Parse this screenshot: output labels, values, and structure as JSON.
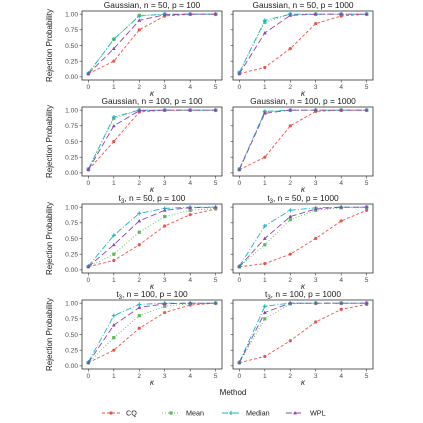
{
  "chart_data": {
    "type": "line",
    "layout": "facet-grid-4x2",
    "x": [
      0,
      1,
      2,
      3,
      4,
      5
    ],
    "xticks": [
      0,
      1,
      2,
      3,
      4,
      5
    ],
    "yticks": [
      0.0,
      0.25,
      0.5,
      0.75,
      1.0
    ],
    "ytick_labels": [
      "0.00",
      "0.25",
      "0.50",
      "0.75",
      "1.00"
    ],
    "xlim": [
      -0.25,
      5.25
    ],
    "ylim": [
      -0.05,
      1.05
    ],
    "xlabel": "κ",
    "ylabel": "Rejection Probability",
    "legend_title": "Method",
    "legend_position": "bottom",
    "grid": false,
    "series_styles": [
      {
        "name": "CQ",
        "color": "#e8534e",
        "dash": "3,2",
        "marker": "circle"
      },
      {
        "name": "Mean",
        "color": "#5cb85c",
        "dash": "1,2",
        "marker": "square"
      },
      {
        "name": "Median",
        "color": "#17b7c9",
        "dash": "6,2,1,2",
        "marker": "plus"
      },
      {
        "name": "WPL",
        "color": "#8e44ad",
        "dash": "6,3",
        "marker": "triangle"
      }
    ],
    "panels": [
      {
        "title": "Gaussian, n = 50, p = 100",
        "series": [
          {
            "name": "CQ",
            "values": [
              0.05,
              0.25,
              0.75,
              0.97,
              1.0,
              1.0
            ]
          },
          {
            "name": "Mean",
            "values": [
              0.05,
              0.6,
              0.98,
              1.0,
              1.0,
              1.0
            ]
          },
          {
            "name": "Median",
            "values": [
              0.06,
              0.6,
              0.97,
              1.0,
              1.0,
              1.0
            ]
          },
          {
            "name": "WPL",
            "values": [
              0.05,
              0.45,
              0.9,
              0.99,
              1.0,
              1.0
            ]
          }
        ]
      },
      {
        "title": "Gaussian, n = 50, p = 1000",
        "series": [
          {
            "name": "CQ",
            "values": [
              0.05,
              0.15,
              0.45,
              0.85,
              0.97,
              1.0
            ]
          },
          {
            "name": "Mean",
            "values": [
              0.07,
              0.87,
              1.0,
              1.0,
              1.0,
              1.0
            ]
          },
          {
            "name": "Median",
            "values": [
              0.07,
              0.9,
              1.0,
              1.0,
              1.0,
              1.0
            ]
          },
          {
            "name": "WPL",
            "values": [
              0.05,
              0.7,
              0.98,
              1.0,
              1.0,
              1.0
            ]
          }
        ]
      },
      {
        "title": "Gaussian, n = 100, p = 100",
        "series": [
          {
            "name": "CQ",
            "values": [
              0.05,
              0.5,
              0.97,
              1.0,
              1.0,
              1.0
            ]
          },
          {
            "name": "Mean",
            "values": [
              0.06,
              0.87,
              1.0,
              1.0,
              1.0,
              1.0
            ]
          },
          {
            "name": "Median",
            "values": [
              0.06,
              0.89,
              1.0,
              1.0,
              1.0,
              1.0
            ]
          },
          {
            "name": "WPL",
            "values": [
              0.05,
              0.75,
              0.99,
              1.0,
              1.0,
              1.0
            ]
          }
        ]
      },
      {
        "title": "Gaussian, n = 100, p = 1000",
        "series": [
          {
            "name": "CQ",
            "values": [
              0.05,
              0.25,
              0.75,
              0.98,
              1.0,
              1.0
            ]
          },
          {
            "name": "Mean",
            "values": [
              0.06,
              0.97,
              1.0,
              1.0,
              1.0,
              1.0
            ]
          },
          {
            "name": "Median",
            "values": [
              0.06,
              0.98,
              1.0,
              1.0,
              1.0,
              1.0
            ]
          },
          {
            "name": "WPL",
            "values": [
              0.05,
              0.95,
              1.0,
              1.0,
              1.0,
              1.0
            ]
          }
        ]
      },
      {
        "title": "t3, n = 50, p = 100",
        "series": [
          {
            "name": "CQ",
            "values": [
              0.05,
              0.15,
              0.4,
              0.7,
              0.88,
              0.97
            ]
          },
          {
            "name": "Mean",
            "values": [
              0.05,
              0.25,
              0.6,
              0.85,
              0.95,
              0.98
            ]
          },
          {
            "name": "Median",
            "values": [
              0.06,
              0.55,
              0.9,
              0.98,
              1.0,
              1.0
            ]
          },
          {
            "name": "WPL",
            "values": [
              0.05,
              0.4,
              0.78,
              0.95,
              0.99,
              1.0
            ]
          }
        ]
      },
      {
        "title": "t3, n = 50, p = 1000",
        "series": [
          {
            "name": "CQ",
            "values": [
              0.05,
              0.1,
              0.25,
              0.5,
              0.78,
              0.95
            ]
          },
          {
            "name": "Mean",
            "values": [
              0.05,
              0.4,
              0.8,
              0.95,
              0.99,
              1.0
            ]
          },
          {
            "name": "Median",
            "values": [
              0.06,
              0.7,
              0.95,
              0.99,
              1.0,
              1.0
            ]
          },
          {
            "name": "WPL",
            "values": [
              0.05,
              0.5,
              0.85,
              0.97,
              1.0,
              1.0
            ]
          }
        ]
      },
      {
        "title": "t3, n = 100, p = 100",
        "series": [
          {
            "name": "CQ",
            "values": [
              0.05,
              0.25,
              0.6,
              0.85,
              0.97,
              1.0
            ]
          },
          {
            "name": "Mean",
            "values": [
              0.05,
              0.45,
              0.8,
              0.95,
              0.99,
              1.0
            ]
          },
          {
            "name": "Median",
            "values": [
              0.06,
              0.8,
              0.98,
              1.0,
              1.0,
              1.0
            ]
          },
          {
            "name": "WPL",
            "values": [
              0.05,
              0.65,
              0.93,
              0.99,
              1.0,
              1.0
            ]
          }
        ]
      },
      {
        "title": "t3, n = 100, p = 1000",
        "series": [
          {
            "name": "CQ",
            "values": [
              0.05,
              0.15,
              0.4,
              0.7,
              0.9,
              0.98
            ]
          },
          {
            "name": "Mean",
            "values": [
              0.05,
              0.75,
              0.99,
              1.0,
              1.0,
              1.0
            ]
          },
          {
            "name": "Median",
            "values": [
              0.06,
              0.95,
              1.0,
              1.0,
              1.0,
              1.0
            ]
          },
          {
            "name": "WPL",
            "values": [
              0.05,
              0.85,
              1.0,
              1.0,
              1.0,
              1.0
            ]
          }
        ]
      }
    ]
  }
}
